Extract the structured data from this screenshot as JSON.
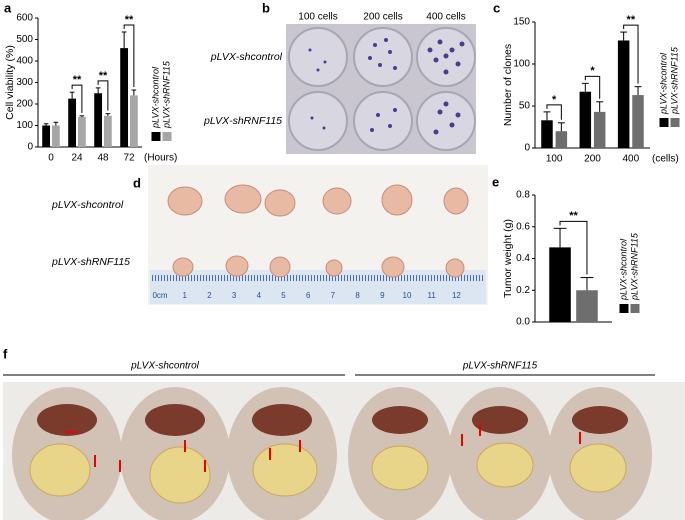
{
  "chart_data": [
    {
      "type": "bar",
      "ylabel": "Cell viability (%)",
      "xlabel": "(Hours)",
      "categories": [
        "0",
        "24",
        "48",
        "72"
      ],
      "series": [
        {
          "name": "pLVX-shcontrol",
          "color": "#000000",
          "values": [
            100,
            225,
            250,
            460
          ],
          "errors": [
            8,
            30,
            25,
            75
          ]
        },
        {
          "name": "pLVX-shRNF115",
          "color": "#a6a6a6",
          "values": [
            100,
            140,
            145,
            240
          ],
          "errors": [
            15,
            5,
            10,
            25
          ]
        }
      ],
      "annotations": [
        null,
        "**",
        "**",
        "**"
      ],
      "ylim": [
        0,
        600
      ],
      "yticks": [
        0,
        100,
        200,
        300,
        400,
        500,
        600
      ]
    },
    {
      "type": "bar",
      "ylabel": "Number of clones",
      "xlabel": "(cells)",
      "categories": [
        "100",
        "200",
        "400"
      ],
      "series": [
        {
          "name": "pLVX-shcontrol",
          "color": "#000000",
          "values": [
            33,
            67,
            128
          ],
          "errors": [
            10,
            10,
            10
          ]
        },
        {
          "name": "pLVX-shRNF115",
          "color": "#6e6e6e",
          "values": [
            20,
            43,
            63
          ],
          "errors": [
            10,
            12,
            10
          ]
        }
      ],
      "annotations": [
        "*",
        "*",
        "**"
      ],
      "ylim": [
        0,
        150
      ],
      "yticks": [
        0,
        50,
        100,
        150
      ]
    },
    {
      "type": "bar",
      "ylabel": "Tumor weight (g)",
      "series": [
        {
          "name": "pLVX-shcontrol",
          "color": "#000000",
          "values": [
            0.47
          ],
          "errors": [
            0.12
          ]
        },
        {
          "name": "pLVX-shRNF115",
          "color": "#6e6e6e",
          "values": [
            0.2
          ],
          "errors": [
            0.08
          ]
        }
      ],
      "annotations": [
        "**"
      ],
      "ylim": [
        0,
        0.8
      ],
      "yticks": [
        {
          "value": 0,
          "label": "0.0"
        },
        0.2,
        0.4,
        0.6,
        0.8
      ]
    }
  ],
  "panels": {
    "labels": [
      "a",
      "b",
      "c",
      "d",
      "e",
      "f"
    ],
    "b": {
      "columns": [
        "100 cells",
        "200 cells",
        "400 cells"
      ],
      "rows": [
        "pLVX-shcontrol",
        "pLVX-shRNF115"
      ]
    },
    "d": {
      "rows": [
        "pLVX-shcontrol",
        "pLVX-shRNF115"
      ],
      "ruler": [
        "0cm",
        "1",
        "2",
        "3",
        "4",
        "5",
        "6",
        "7",
        "8",
        "9",
        "10",
        "11",
        "12"
      ]
    },
    "f": {
      "groups": [
        "pLVX-shcontrol",
        "pLVX-shRNF115"
      ]
    }
  }
}
